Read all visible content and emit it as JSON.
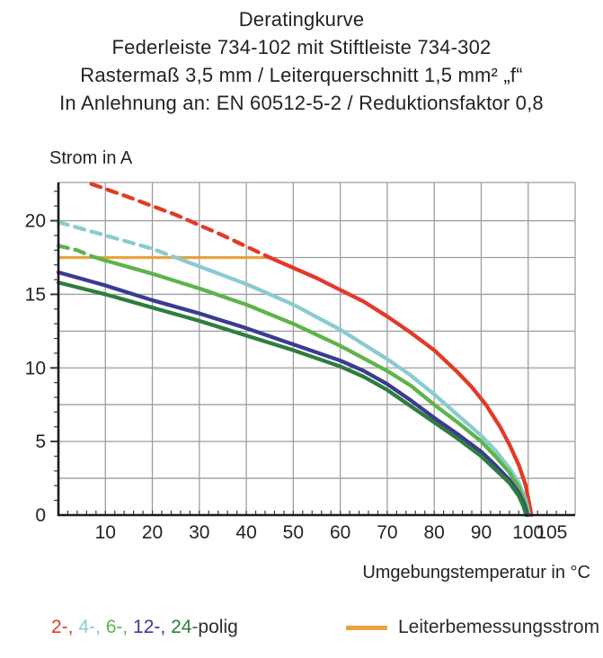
{
  "header": {
    "lines": [
      "Deratingkurve",
      "Federleiste 734-102 mit Stiftleiste 734-302",
      "Rastermaß 3,5 mm / Leiterquerschnitt 1,5 mm² „f“",
      "In Anlehnung an: EN 60512-5-2 / Reduktionsfaktor 0,8"
    ]
  },
  "axis_labels": {
    "y": "Strom in A",
    "x": "Umgebungstemperatur in °C"
  },
  "legend": {
    "poles_segments": [
      {
        "text": "2-, ",
        "color": "#e23a28"
      },
      {
        "text": "4-, ",
        "color": "#8acbd0"
      },
      {
        "text": "6-, ",
        "color": "#5eb44a"
      },
      {
        "text": "12-, ",
        "color": "#3b3b92"
      },
      {
        "text": "24-",
        "color": "#2e7d3e"
      },
      {
        "text": "polig",
        "color": "#2b2b2b"
      }
    ],
    "reference_label": "Leiterbemessungsstrom",
    "reference_color": "#e9a23f"
  },
  "chart_data": {
    "type": "line",
    "title": "Deratingkurve",
    "xlabel": "Umgebungstemperatur in °C",
    "ylabel": "Strom in A",
    "xlim": [
      0,
      110
    ],
    "ylim": [
      0,
      22.6
    ],
    "x_ticks": [
      10,
      20,
      30,
      40,
      50,
      60,
      70,
      80,
      90,
      100,
      105
    ],
    "y_ticks": [
      0,
      5,
      10,
      15,
      20
    ],
    "grid": {
      "x_lines": [
        10,
        20,
        30,
        40,
        50,
        60,
        70,
        80,
        90,
        100
      ],
      "y_lines": [
        2.5,
        5,
        7.5,
        10,
        12.5,
        15,
        17.5,
        20
      ],
      "x_minor_step": 2,
      "y_minor_step": 1
    },
    "style": {
      "grid_color": "#9e9e9e",
      "axis_color": "#1a1a1a"
    },
    "reference_line": {
      "label": "Leiterbemessungsstrom",
      "color": "#e9a23f",
      "y": 17.5,
      "x_range": [
        0,
        45.3
      ]
    },
    "series": [
      {
        "name": "2-polig",
        "color": "#e23a28",
        "dashed": [
          [
            7,
            22.5
          ],
          [
            15,
            21.6
          ],
          [
            25,
            20.4
          ],
          [
            35,
            19.0
          ],
          [
            45,
            17.5
          ]
        ],
        "solid": [
          [
            45,
            17.5
          ],
          [
            50,
            16.8
          ],
          [
            55,
            16.1
          ],
          [
            60,
            15.3
          ],
          [
            65,
            14.5
          ],
          [
            70,
            13.5
          ],
          [
            75,
            12.4
          ],
          [
            80,
            11.2
          ],
          [
            85,
            9.7
          ],
          [
            88,
            8.7
          ],
          [
            91,
            7.5
          ],
          [
            94,
            6.0
          ],
          [
            96,
            4.8
          ],
          [
            98,
            3.4
          ],
          [
            99.5,
            2.0
          ],
          [
            100.7,
            0
          ]
        ]
      },
      {
        "name": "4-polig",
        "color": "#8acbd0",
        "dashed": [
          [
            0,
            19.9
          ],
          [
            10,
            19.0
          ],
          [
            20,
            18.1
          ],
          [
            25,
            17.5
          ]
        ],
        "solid": [
          [
            25,
            17.5
          ],
          [
            30,
            16.9
          ],
          [
            40,
            15.7
          ],
          [
            50,
            14.3
          ],
          [
            60,
            12.6
          ],
          [
            70,
            10.6
          ],
          [
            75,
            9.5
          ],
          [
            80,
            8.2
          ],
          [
            85,
            6.8
          ],
          [
            90,
            5.4
          ],
          [
            93,
            4.4
          ],
          [
            96,
            3.2
          ],
          [
            98,
            2.2
          ],
          [
            99.5,
            1.0
          ],
          [
            100.2,
            0
          ]
        ]
      },
      {
        "name": "6-polig",
        "color": "#5eb44a",
        "dashed": [
          [
            0,
            18.3
          ],
          [
            4,
            18.0
          ],
          [
            7,
            17.6
          ]
        ],
        "solid": [
          [
            7,
            17.6
          ],
          [
            10,
            17.3
          ],
          [
            20,
            16.4
          ],
          [
            30,
            15.4
          ],
          [
            40,
            14.3
          ],
          [
            50,
            13.0
          ],
          [
            60,
            11.5
          ],
          [
            70,
            9.8
          ],
          [
            75,
            8.8
          ],
          [
            80,
            7.5
          ],
          [
            85,
            6.3
          ],
          [
            90,
            5.0
          ],
          [
            93,
            4.0
          ],
          [
            96,
            2.9
          ],
          [
            98,
            1.9
          ],
          [
            99.3,
            0.9
          ],
          [
            100,
            0
          ]
        ]
      },
      {
        "name": "12-polig",
        "color": "#3b3b92",
        "dashed": null,
        "solid": [
          [
            0,
            16.5
          ],
          [
            10,
            15.6
          ],
          [
            20,
            14.6
          ],
          [
            30,
            13.7
          ],
          [
            40,
            12.7
          ],
          [
            50,
            11.6
          ],
          [
            60,
            10.5
          ],
          [
            65,
            9.8
          ],
          [
            70,
            8.9
          ],
          [
            75,
            7.8
          ],
          [
            80,
            6.6
          ],
          [
            85,
            5.5
          ],
          [
            90,
            4.3
          ],
          [
            93,
            3.4
          ],
          [
            96,
            2.4
          ],
          [
            98,
            1.5
          ],
          [
            99.2,
            0.7
          ],
          [
            99.8,
            0
          ]
        ]
      },
      {
        "name": "24-polig",
        "color": "#2e7d3e",
        "dashed": null,
        "solid": [
          [
            0,
            15.8
          ],
          [
            10,
            15.0
          ],
          [
            20,
            14.1
          ],
          [
            30,
            13.2
          ],
          [
            40,
            12.2
          ],
          [
            50,
            11.2
          ],
          [
            60,
            10.1
          ],
          [
            65,
            9.4
          ],
          [
            70,
            8.5
          ],
          [
            75,
            7.4
          ],
          [
            80,
            6.3
          ],
          [
            85,
            5.2
          ],
          [
            90,
            4.0
          ],
          [
            93,
            3.1
          ],
          [
            96,
            2.2
          ],
          [
            98,
            1.3
          ],
          [
            99,
            0.6
          ],
          [
            99.6,
            0
          ]
        ]
      }
    ]
  }
}
